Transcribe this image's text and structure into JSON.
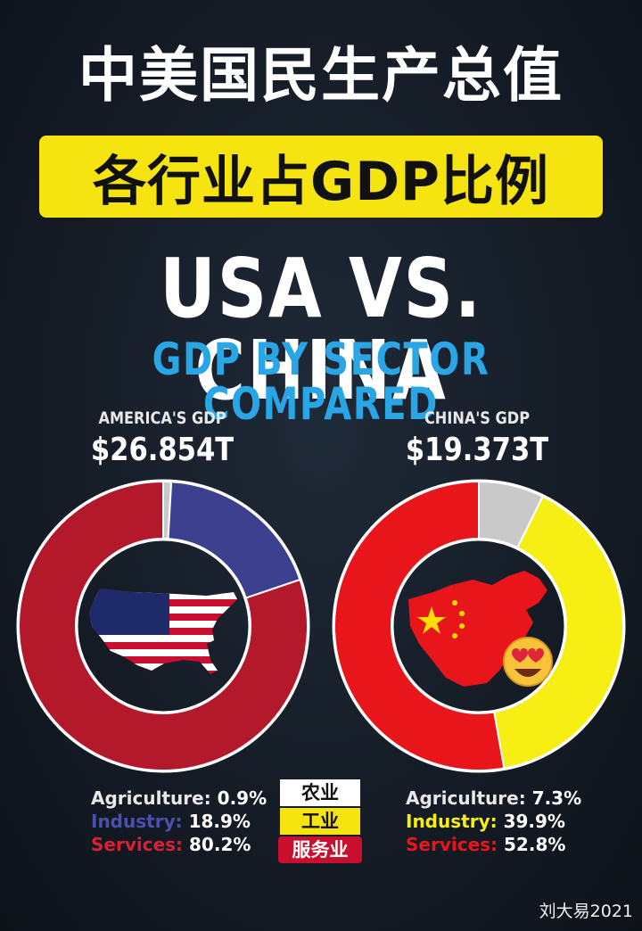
{
  "header": {
    "title_cn": "中美国民生产总值",
    "banner_cn": "各行业占GDP比例",
    "headline": "USA VS. CHINA",
    "subheadline": "GDP BY SECTOR COMPARED"
  },
  "usa": {
    "label": "AMERICA'S GDP",
    "total": "$26.854T"
  },
  "china": {
    "label": "CHINA'S GDP",
    "total": "$19.373T"
  },
  "legend": {
    "agriculture": "农业",
    "industry": "工业",
    "services": "服务业"
  },
  "stats": {
    "usa": {
      "agriculture_label": "Agriculture:",
      "agriculture_value": "0.9%",
      "industry_label": "Industry:",
      "industry_value": "18.9%",
      "services_label": "Services:",
      "services_value": "80.2%"
    },
    "china": {
      "agriculture_label": "Agriculture:",
      "agriculture_value": "7.3%",
      "industry_label": "Industry:",
      "industry_value": "39.9%",
      "services_label": "Services:",
      "services_value": "52.8%"
    }
  },
  "watermark": "刘大易2021",
  "colors": {
    "usa_agriculture": "#c9c9c9",
    "usa_industry": "#3d3f8f",
    "usa_services": "#b3182b",
    "china_agriculture": "#c9c9c9",
    "china_industry": "#f7ee14",
    "china_services": "#e8161b",
    "accent_blue": "#2aa6e6",
    "banner_yellow": "#f5e40f"
  },
  "chart_data": [
    {
      "type": "pie",
      "title": "AMERICA'S GDP",
      "categories": [
        "Agriculture",
        "Industry",
        "Services"
      ],
      "values": [
        0.9,
        18.9,
        80.2
      ],
      "total": "$26.854T"
    },
    {
      "type": "pie",
      "title": "CHINA'S GDP",
      "categories": [
        "Agriculture",
        "Industry",
        "Services"
      ],
      "values": [
        7.3,
        39.9,
        52.8
      ],
      "total": "$19.373T"
    }
  ]
}
